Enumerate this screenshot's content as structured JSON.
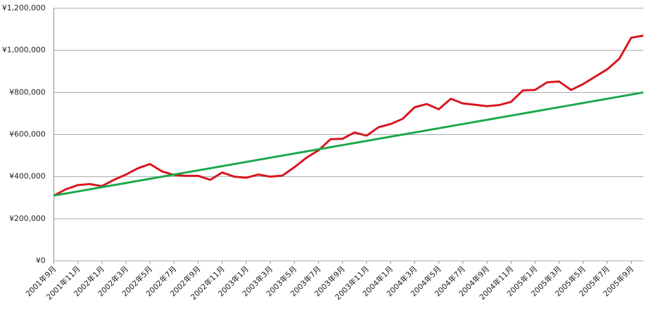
{
  "chart_data": {
    "type": "line",
    "categories": [
      "2001年9月",
      null,
      "2001年11月",
      null,
      "2002年1月",
      null,
      "2002年3月",
      null,
      "2002年5月",
      null,
      "2002年7月",
      null,
      "2002年9月",
      null,
      "2002年11月",
      null,
      "2003年1月",
      null,
      "2003年3月",
      null,
      "2003年5月",
      null,
      "2003年7月",
      null,
      "2003年9月",
      null,
      "2003年11月",
      null,
      "2004年1月",
      null,
      "2004年3月",
      null,
      "2004年5月",
      null,
      "2004年7月",
      null,
      "2004年9月",
      null,
      "2004年11月",
      null,
      "2005年1月",
      null,
      "2005年3月",
      null,
      "2005年5月",
      null,
      "2005年7月",
      null,
      "2005年9月",
      null
    ],
    "series": [
      {
        "color": "#d9141b",
        "values": [
          310000,
          340000,
          360000,
          365000,
          355000,
          385000,
          410000,
          440000,
          460000,
          425000,
          408000,
          404000,
          404000,
          385000,
          420000,
          400000,
          395000,
          410000,
          400000,
          405000,
          445000,
          490000,
          525000,
          578000,
          580000,
          610000,
          595000,
          635000,
          650000,
          675000,
          730000,
          745000,
          720000,
          770000,
          748000,
          742000,
          735000,
          740000,
          755000,
          810000,
          812000,
          848000,
          852000,
          812000,
          840000,
          875000,
          910000,
          960000,
          1060000,
          1070000
        ]
      },
      {
        "color": "#1aa84a",
        "values": [
          310000,
          320000,
          330000,
          340000,
          350000,
          360000,
          370000,
          380000,
          390000,
          400000,
          410000,
          420000,
          430000,
          440000,
          450000,
          460000,
          470000,
          480000,
          490000,
          500000,
          510000,
          520000,
          530000,
          540000,
          550000,
          560000,
          570000,
          580000,
          590000,
          600000,
          610000,
          620000,
          630000,
          640000,
          650000,
          660000,
          670000,
          680000,
          690000,
          700000,
          710000,
          720000,
          730000,
          740000,
          750000,
          760000,
          770000,
          780000,
          790000,
          800000
        ]
      }
    ],
    "ylim": [
      0,
      1200000
    ],
    "yticks": [
      {
        "value": 0,
        "label": "¥0"
      },
      {
        "value": 200000,
        "label": "¥200,000"
      },
      {
        "value": 400000,
        "label": "¥400,000"
      },
      {
        "value": 600000,
        "label": "¥600,000"
      },
      {
        "value": 800000,
        "label": "¥800,000"
      },
      {
        "value": 1000000,
        "label": "¥1,000,000"
      },
      {
        "value": 1200000,
        "label": "¥1,200,000"
      }
    ],
    "grid": true
  }
}
